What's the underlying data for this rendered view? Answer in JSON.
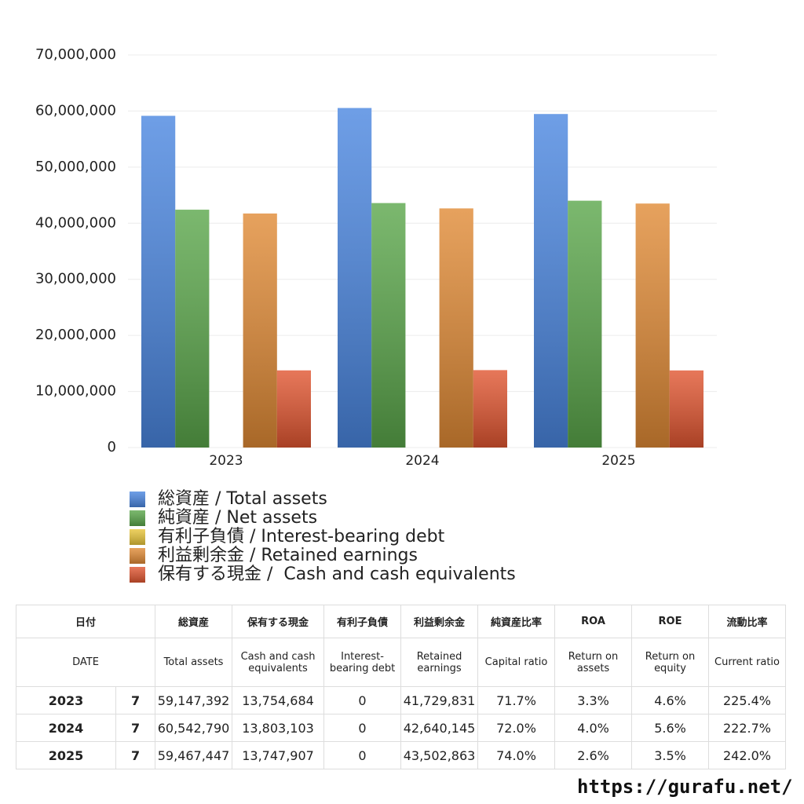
{
  "chart_data": {
    "type": "bar",
    "categories": [
      "2023",
      "2024",
      "2025"
    ],
    "series": [
      {
        "name": "総資産 / Total assets",
        "color": "#4a86e0",
        "values": [
          59147392,
          60542790,
          59467447
        ]
      },
      {
        "name": "純資産 / Net assets",
        "color": "#5aa64a",
        "values": [
          42410000,
          43590000,
          44010000
        ]
      },
      {
        "name": "有利子負債 / Interest-bearing debt",
        "color": "#e8c53a",
        "values": [
          0,
          0,
          0
        ]
      },
      {
        "name": "利益剰余金 / Retained earnings",
        "color": "#e08a35",
        "values": [
          41729831,
          42640145,
          43502863
        ]
      },
      {
        "name": "保有する現金 /  Cash and cash equivalents",
        "color": "#e05530",
        "values": [
          13754684,
          13803103,
          13747907
        ]
      }
    ],
    "ylim": [
      0,
      70000000
    ],
    "yticks": [
      0,
      {
        "value": 10000000,
        "label": "10,000,000"
      },
      {
        "value": 20000000,
        "label": "20,000,000"
      },
      {
        "value": 30000000,
        "label": "30,000,000"
      },
      {
        "value": 40000000,
        "label": "40,000,000"
      },
      {
        "value": 50000000,
        "label": "50,000,000"
      },
      {
        "value": 60000000,
        "label": "60,000,000"
      },
      {
        "value": 70000000,
        "label": "70,000,000"
      }
    ],
    "grid": true
  },
  "table": {
    "header_jp": [
      "日付",
      "総資産",
      "保有する現金",
      "有利子負債",
      "利益剰余金",
      "純資産比率",
      "ROA",
      "ROE",
      "流動比率"
    ],
    "header_en": [
      "DATE",
      "Total assets",
      "Cash and cash equivalents",
      "Interest-bearing debt",
      "Retained earnings",
      "Capital ratio",
      "Return on assets",
      "Return on equity",
      "Current ratio"
    ],
    "rows": [
      [
        "2023",
        "7",
        "59,147,392",
        "13,754,684",
        "0",
        "41,729,831",
        "71.7%",
        "3.3%",
        "4.6%",
        "225.4%"
      ],
      [
        "2024",
        "7",
        "60,542,790",
        "13,803,103",
        "0",
        "42,640,145",
        "72.0%",
        "4.0%",
        "5.6%",
        "222.7%"
      ],
      [
        "2025",
        "7",
        "59,467,447",
        "13,747,907",
        "0",
        "43,502,863",
        "74.0%",
        "2.6%",
        "3.5%",
        "242.0%"
      ]
    ]
  },
  "footer": {
    "url": "https://gurafu.net/"
  }
}
